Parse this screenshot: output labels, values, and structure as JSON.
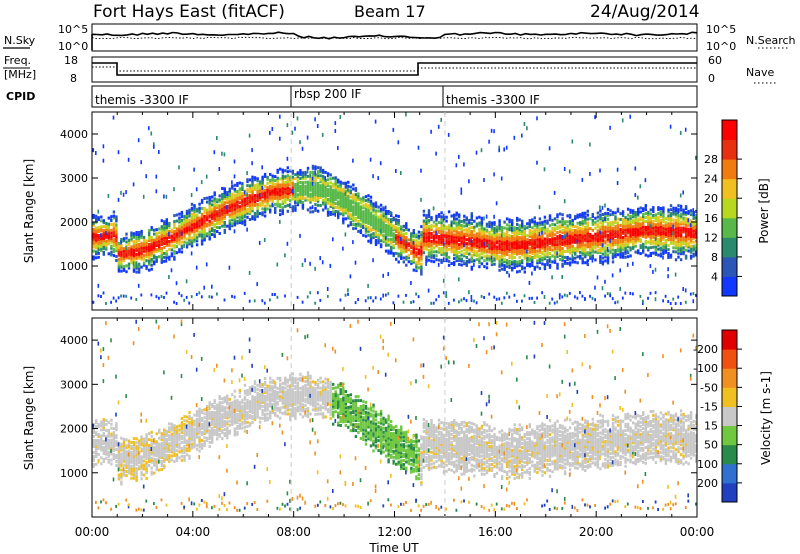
{
  "header": {
    "station": "Fort Hays East (fitACF)",
    "beam": "Beam 17",
    "date": "24/Aug/2014"
  },
  "top_panels": {
    "nsky_label": "N.Sky",
    "nsky_ticks": [
      "10^5",
      "10^0"
    ],
    "nsearch_label": "N.Search",
    "nsearch_ticks": [
      "10^5",
      "10^0"
    ],
    "freq_label_1": "Freq.",
    "freq_label_2": "[MHz]",
    "freq_ticks": [
      "18",
      "8"
    ],
    "nave_label": "Nave",
    "nave_ticks": [
      "60",
      "0"
    ],
    "cpid_label": "CPID",
    "cpid_segments": [
      {
        "label": "themis -3300 IF",
        "start_hour": 0,
        "end_hour": 7.9
      },
      {
        "label": "rbsp 200 IF",
        "start_hour": 7.9,
        "end_hour": 14.0
      },
      {
        "label": "themis -3300 IF",
        "start_hour": 14.0,
        "end_hour": 24
      }
    ]
  },
  "chart_data": [
    {
      "type": "heatmap",
      "panel": "power",
      "ylabel": "Slant Range [km]",
      "ylim": [
        0,
        4500
      ],
      "yticks": [
        1000,
        2000,
        3000,
        4000
      ],
      "xlim": [
        0,
        24
      ],
      "colorbar_label": "Power [dB]",
      "colorbar_ticks": [
        "4",
        "8",
        "12",
        "16",
        "20",
        "24",
        "28"
      ],
      "colorbar_colors": [
        "#1038ff",
        "#2a56b8",
        "#2a8a6e",
        "#58b84a",
        "#b8d820",
        "#f0c020",
        "#f07c10",
        "#e83010",
        "#ff0000"
      ],
      "backscatter_band_km": [
        [
          0,
          1700
        ],
        [
          0.9,
          1750
        ],
        [
          1.0,
          1300
        ],
        [
          2,
          1400
        ],
        [
          3,
          1650
        ],
        [
          4,
          1950
        ],
        [
          5,
          2250
        ],
        [
          6,
          2500
        ],
        [
          7,
          2700
        ],
        [
          8,
          2780
        ],
        [
          9,
          2800
        ],
        [
          10,
          2500
        ],
        [
          11,
          2100
        ],
        [
          12,
          1700
        ],
        [
          13,
          1300
        ],
        [
          13.1,
          1700
        ],
        [
          14,
          1650
        ],
        [
          15,
          1600
        ],
        [
          16,
          1500
        ],
        [
          17,
          1520
        ],
        [
          18,
          1580
        ],
        [
          19,
          1650
        ],
        [
          20,
          1700
        ],
        [
          21,
          1780
        ],
        [
          22,
          1850
        ],
        [
          23,
          1820
        ],
        [
          24,
          1780
        ]
      ]
    },
    {
      "type": "heatmap",
      "panel": "velocity",
      "ylabel": "Slant Range [km]",
      "ylim": [
        0,
        4500
      ],
      "yticks": [
        1000,
        2000,
        3000,
        4000
      ],
      "xlim": [
        0,
        24
      ],
      "xlabel": "Time UT",
      "xtick_labels": [
        "00:00",
        "04:00",
        "08:00",
        "12:00",
        "16:00",
        "20:00",
        "00:00"
      ],
      "colorbar_label": "Velocity [m s-1]",
      "colorbar_ticks": [
        "200",
        "100",
        "50",
        "15",
        "-15",
        "-50",
        "-100",
        "-200"
      ],
      "colorbar_colors": [
        "#2040c0",
        "#3070d0",
        "#2a8a4a",
        "#70c840",
        "#c8c8c8",
        "#f0c020",
        "#f09020",
        "#f05010",
        "#e00000"
      ]
    }
  ]
}
